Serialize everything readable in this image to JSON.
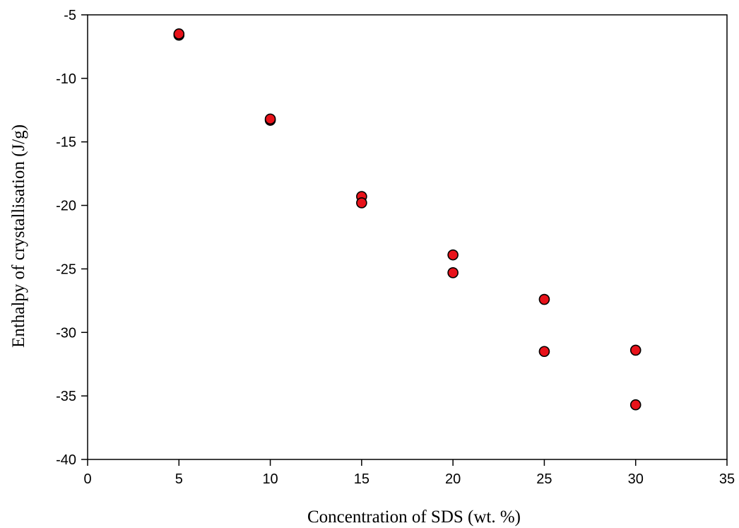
{
  "chart_data": {
    "type": "scatter",
    "title": "",
    "xlabel": "Concentration of SDS (wt. %)",
    "ylabel": "Enthalpy of crystallisation (J/g)",
    "xlim": [
      0,
      35
    ],
    "ylim": [
      -40,
      -5
    ],
    "xticks": [
      0,
      5,
      10,
      15,
      20,
      25,
      30,
      35
    ],
    "yticks": [
      -5,
      -10,
      -15,
      -20,
      -25,
      -30,
      -35,
      -40
    ],
    "grid": false,
    "legend": "none",
    "marker_color": "#e8121a",
    "marker_edge_color": "#000000",
    "series": [
      {
        "points": [
          {
            "x": 5,
            "y": -6.6
          },
          {
            "x": 5,
            "y": -6.5
          },
          {
            "x": 10,
            "y": -13.3
          },
          {
            "x": 10,
            "y": -13.2
          },
          {
            "x": 15,
            "y": -19.3
          },
          {
            "x": 15,
            "y": -19.8
          },
          {
            "x": 20,
            "y": -23.9
          },
          {
            "x": 20,
            "y": -25.3
          },
          {
            "x": 25,
            "y": -27.4
          },
          {
            "x": 25,
            "y": -31.5
          },
          {
            "x": 30,
            "y": -31.4
          },
          {
            "x": 30,
            "y": -35.7
          }
        ]
      }
    ]
  }
}
